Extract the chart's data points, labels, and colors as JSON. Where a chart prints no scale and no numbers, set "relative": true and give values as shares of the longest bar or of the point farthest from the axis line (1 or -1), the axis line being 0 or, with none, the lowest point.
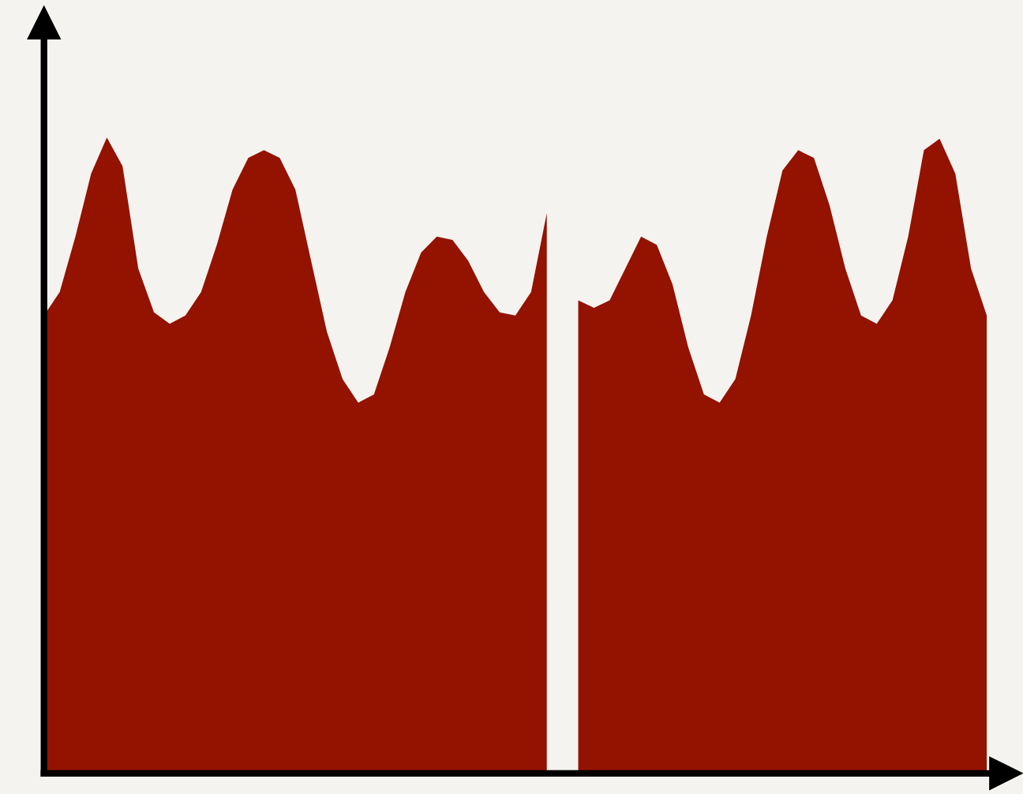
{
  "chart_data": {
    "type": "area",
    "relative": true,
    "categories": [
      null,
      null,
      null,
      null,
      null,
      null,
      null,
      null,
      null,
      null,
      null,
      null,
      null,
      null,
      null,
      null,
      null,
      null,
      null,
      null,
      null,
      null,
      null,
      null,
      null,
      null,
      null,
      null,
      null,
      null,
      null,
      null,
      null,
      null,
      null,
      null,
      null,
      null,
      null,
      null,
      null,
      null,
      null,
      null,
      null,
      null,
      null,
      null,
      null,
      null,
      null,
      null,
      null,
      null,
      null,
      null,
      null,
      null,
      null,
      null,
      null
    ],
    "series": [
      {
        "color": "#931200",
        "values": [
          0.72,
          0.757,
          0.844,
          0.943,
          1.0,
          0.955,
          0.794,
          0.725,
          0.707,
          0.72,
          0.757,
          0.831,
          0.918,
          0.968,
          0.98,
          0.968,
          0.918,
          0.806,
          0.695,
          0.62,
          0.583,
          0.596,
          0.67,
          0.757,
          0.819,
          0.844,
          0.839,
          0.806,
          0.757,
          0.725,
          0.72,
          0.757,
          0.881,
          null,
          null,
          null,
          null,
          null,
          null,
          null,
          null,
          null,
          null,
          null,
          null,
          null,
          null,
          null,
          null,
          null,
          null,
          null,
          null,
          null,
          null,
          null,
          null,
          null,
          null,
          null,
          null
        ]
      },
      {
        "color": "#931200",
        "values": [
          null,
          null,
          null,
          null,
          null,
          null,
          null,
          null,
          null,
          null,
          null,
          null,
          null,
          null,
          null,
          null,
          null,
          null,
          null,
          null,
          null,
          null,
          null,
          null,
          null,
          null,
          null,
          null,
          null,
          null,
          null,
          null,
          null,
          null,
          0.744,
          0.732,
          0.744,
          0.794,
          0.844,
          0.831,
          0.769,
          0.67,
          0.596,
          0.583,
          0.62,
          0.72,
          0.844,
          0.948,
          0.98,
          0.968,
          0.893,
          0.794,
          0.72,
          0.707,
          0.744,
          0.844,
          0.98,
          0.998,
          0.943,
          0.794,
          0.72
        ]
      }
    ]
  }
}
